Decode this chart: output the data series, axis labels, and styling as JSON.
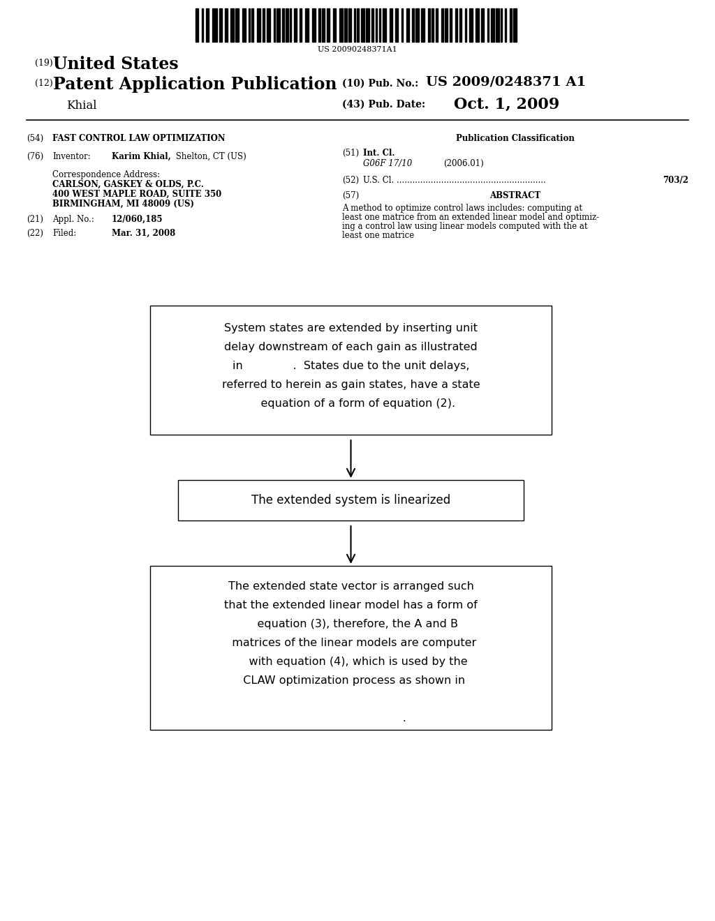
{
  "bg_color": "#ffffff",
  "barcode_text": "US 20090248371A1",
  "pub_no_label": "(10) Pub. No.:",
  "pub_no_value": "US 2009/0248371 A1",
  "pub_date_label": "(43) Pub. Date:",
  "pub_date_value": "Oct. 1, 2009",
  "inventor_last": "Khial",
  "field_54_label": "(54)",
  "field_54_value": "FAST CONTROL LAW OPTIMIZATION",
  "field_76_label": "(76)",
  "field_76_name": "Inventor:",
  "field_76_value": "Karim Khial, Shelton, CT (US)",
  "corr_addr_label": "Correspondence Address:",
  "corr_addr_lines": [
    "CARLSON, GASKEY & OLDS, P.C.",
    "400 WEST MAPLE ROAD, SUITE 350",
    "BIRMINGHAM, MI 48009 (US)"
  ],
  "field_21_label": "(21)",
  "field_21_name": "Appl. No.:",
  "field_21_value": "12/060,185",
  "field_22_label": "(22)",
  "field_22_name": "Filed:",
  "field_22_value": "Mar. 31, 2008",
  "pub_class_title": "Publication Classification",
  "field_51_label": "(51)",
  "field_51_name": "Int. Cl.",
  "field_51_class": "G06F 17/10",
  "field_51_year": "(2006.01)",
  "field_52_label": "(52)",
  "field_52_name": "U.S. Cl. .........................................................",
  "field_52_value": "703/2",
  "field_57_label": "(57)",
  "field_57_name": "ABSTRACT",
  "abstract_lines": [
    "A method to optimize control laws includes: computing at",
    "least one matrice from an extended linear model and optimiz-",
    "ing a control law using linear models computed with the at",
    "least one matrice"
  ],
  "box1_lines": [
    "System states are extended by inserting unit",
    "delay downstream of each gain as illustrated",
    "in              .  States due to the unit delays,",
    "referred to herein as gain states, have a state",
    "    equation of a form of equation (2)."
  ],
  "box2_text": "The extended system is linearized",
  "box3_lines": [
    "The extended state vector is arranged such",
    "that the extended linear model has a form of",
    "    equation (3), therefore, the A and B",
    "  matrices of the linear models are computer",
    "    with equation (4), which is used by the",
    "  CLAW optimization process as shown in",
    "",
    "                              ."
  ]
}
